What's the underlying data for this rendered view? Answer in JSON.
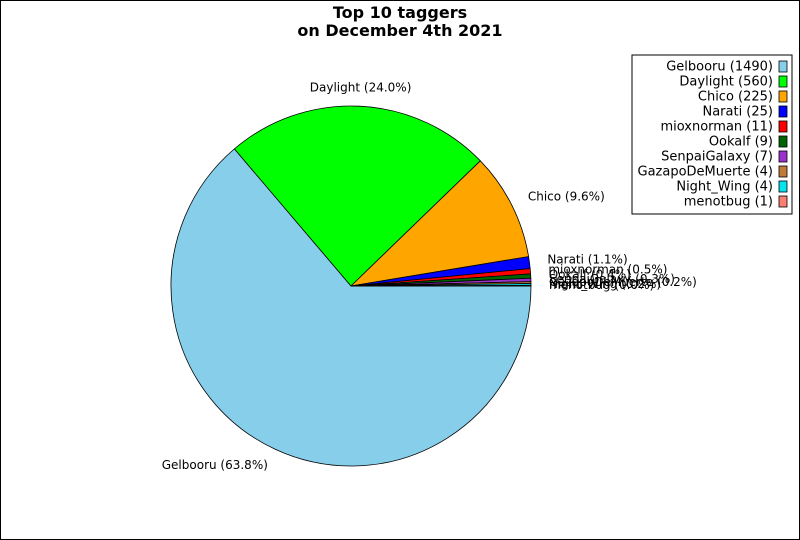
{
  "chart_data": {
    "type": "pie",
    "title": [
      "Top 10 taggers",
      "on December 4th 2021"
    ],
    "start_angle": 0,
    "direction": "clockwise",
    "legend_position": "top-right",
    "slices": [
      {
        "name": "Gelbooru",
        "value": 1490,
        "legend": "Gelbooru (1490)",
        "label": "Gelbooru (63.8%)",
        "color": "#87ceeb"
      },
      {
        "name": "Daylight",
        "value": 560,
        "legend": "Daylight (560)",
        "label": "Daylight (24.0%)",
        "color": "#00ff00"
      },
      {
        "name": "Chico",
        "value": 225,
        "legend": "Chico (225)",
        "label": "Chico (9.6%)",
        "color": "#ffa500"
      },
      {
        "name": "Narati",
        "value": 25,
        "legend": "Narati (25)",
        "label": "Narati (1.1%)",
        "color": "#0000ff"
      },
      {
        "name": "mioxnorman",
        "value": 11,
        "legend": "mioxnorman (11)",
        "label": "mioxnorman (0.5%)",
        "color": "#ff0000"
      },
      {
        "name": "Ookalf",
        "value": 9,
        "legend": "Ookalf (9)",
        "label": "Ookalf (0.4%)",
        "color": "#006400"
      },
      {
        "name": "SenpaiGalaxy",
        "value": 7,
        "legend": "SenpaiGalaxy (7)",
        "label": "SenpaiGalaxy (0.3%)",
        "color": "#9932cc"
      },
      {
        "name": "GazapoDeMuerte",
        "value": 4,
        "legend": "GazapoDeMuerte (4)",
        "label": "GazapoDeMuerte (0.2%)",
        "color": "#c27c3a"
      },
      {
        "name": "Night_Wing",
        "value": 4,
        "legend": "Night_Wing (4)",
        "label": "Night_Wing (0.2%)",
        "color": "#00e5ee"
      },
      {
        "name": "menotbug",
        "value": 1,
        "legend": "menotbug (1)",
        "label": "menotbug (0.0%)",
        "color": "#fa8072"
      }
    ]
  }
}
